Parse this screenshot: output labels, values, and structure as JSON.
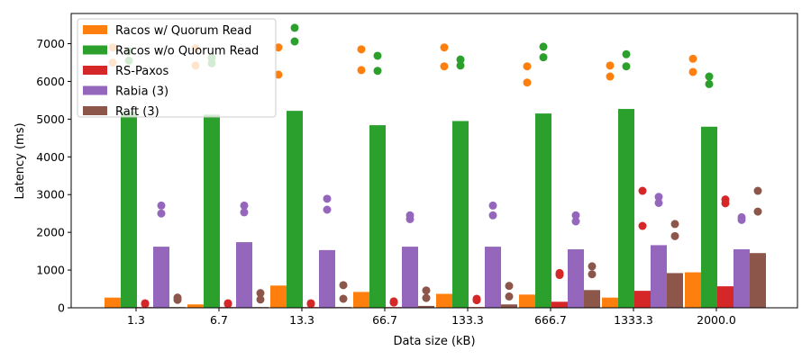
{
  "chart_data": {
    "type": "bar",
    "xlabel": "Data size (kB)",
    "ylabel": "Latency (ms)",
    "ylim": [
      0,
      7800
    ],
    "yticks": [
      0,
      1000,
      2000,
      3000,
      4000,
      5000,
      6000,
      7000
    ],
    "categories": [
      "1.3",
      "6.7",
      "13.3",
      "66.7",
      "133.3",
      "666.7",
      "1333.3",
      "2000.0"
    ],
    "legend_position": "top-left",
    "series": [
      {
        "name": "Racos w/ Quorum Read",
        "color": "#ff7f0e",
        "values": [
          270,
          90,
          590,
          420,
          370,
          350,
          270,
          940
        ],
        "points": [
          [
            6900,
            6500
          ],
          [
            6880,
            6420
          ],
          [
            6900,
            6180
          ],
          [
            6850,
            6300
          ],
          [
            6900,
            6400
          ],
          [
            6400,
            5970
          ],
          [
            6420,
            6130
          ],
          [
            6600,
            6250
          ]
        ]
      },
      {
        "name": "Racos w/o Quorum Read",
        "color": "#2ca02c",
        "values": [
          5200,
          5120,
          5220,
          4840,
          4950,
          5150,
          5270,
          4800
        ],
        "points": [
          [
            6800,
            6550
          ],
          [
            6620,
            6480
          ],
          [
            7420,
            7060
          ],
          [
            6680,
            6280
          ],
          [
            6580,
            6420
          ],
          [
            6920,
            6640
          ],
          [
            6720,
            6400
          ],
          [
            6130,
            5930
          ]
        ]
      },
      {
        "name": "RS-Paxos",
        "color": "#d62728",
        "values": [
          20,
          20,
          20,
          20,
          20,
          160,
          450,
          570
        ],
        "points": [
          [
            120,
            100
          ],
          [
            120,
            100
          ],
          [
            120,
            100
          ],
          [
            170,
            140
          ],
          [
            240,
            200
          ],
          [
            920,
            870
          ],
          [
            3100,
            2170
          ],
          [
            2870,
            2770
          ]
        ]
      },
      {
        "name": "Rabia (3)",
        "color": "#9467bd",
        "values": [
          1620,
          1740,
          1530,
          1620,
          1620,
          1550,
          1660,
          1550
        ],
        "points": [
          [
            2710,
            2500
          ],
          [
            2710,
            2530
          ],
          [
            2890,
            2600
          ],
          [
            2450,
            2350
          ],
          [
            2710,
            2450
          ],
          [
            2450,
            2290
          ],
          [
            2940,
            2780
          ],
          [
            2400,
            2330
          ]
        ]
      },
      {
        "name": "Raft (3)",
        "color": "#8c564b",
        "values": [
          20,
          20,
          20,
          50,
          90,
          470,
          920,
          1450
        ],
        "points": [
          [
            270,
            210
          ],
          [
            390,
            220
          ],
          [
            600,
            240
          ],
          [
            460,
            260
          ],
          [
            580,
            300
          ],
          [
            1100,
            890
          ],
          [
            2220,
            1900
          ],
          [
            3100,
            2550
          ]
        ]
      }
    ]
  }
}
